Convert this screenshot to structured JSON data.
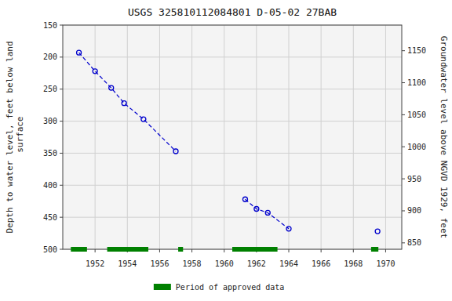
{
  "chart_data": {
    "type": "line",
    "title": "USGS 325810112084801 D-05-02 27BAB",
    "ylabel": "Depth to water level, feet below land\n surface",
    "y2label": "Groundwater level above NGVD 1929, feet",
    "xlim": [
      1950,
      1971
    ],
    "xticks": [
      1952,
      1954,
      1956,
      1958,
      1960,
      1962,
      1964,
      1966,
      1968,
      1970
    ],
    "ylim": [
      500,
      150
    ],
    "yticks": [
      150,
      200,
      250,
      300,
      350,
      400,
      450,
      500
    ],
    "y2lim": [
      840,
      1190
    ],
    "y2ticks": [
      850,
      900,
      950,
      1000,
      1050,
      1100,
      1150
    ],
    "grid": true,
    "legend": "bottom",
    "series": [
      {
        "type": "line",
        "color": "#0000cc",
        "line_style": "dashed",
        "marker": "circle",
        "x": [
          1951.0,
          1952.0,
          1953.0,
          1953.8,
          1955.0,
          1957.0,
          null,
          1961.3,
          1962.0,
          1962.7,
          1964.0,
          null,
          1969.5
        ],
        "values": [
          193,
          222,
          248,
          272,
          297,
          347,
          null,
          422,
          437,
          443,
          468,
          null,
          472
        ]
      },
      {
        "type": "span",
        "name": "Period of approved data",
        "color": "#008000",
        "x_start": [
          1950.5,
          1952.75,
          1957.15,
          1960.5,
          1969.1
        ],
        "x_end": [
          1951.5,
          1955.3,
          1957.45,
          1963.3,
          1969.55
        ]
      }
    ]
  }
}
